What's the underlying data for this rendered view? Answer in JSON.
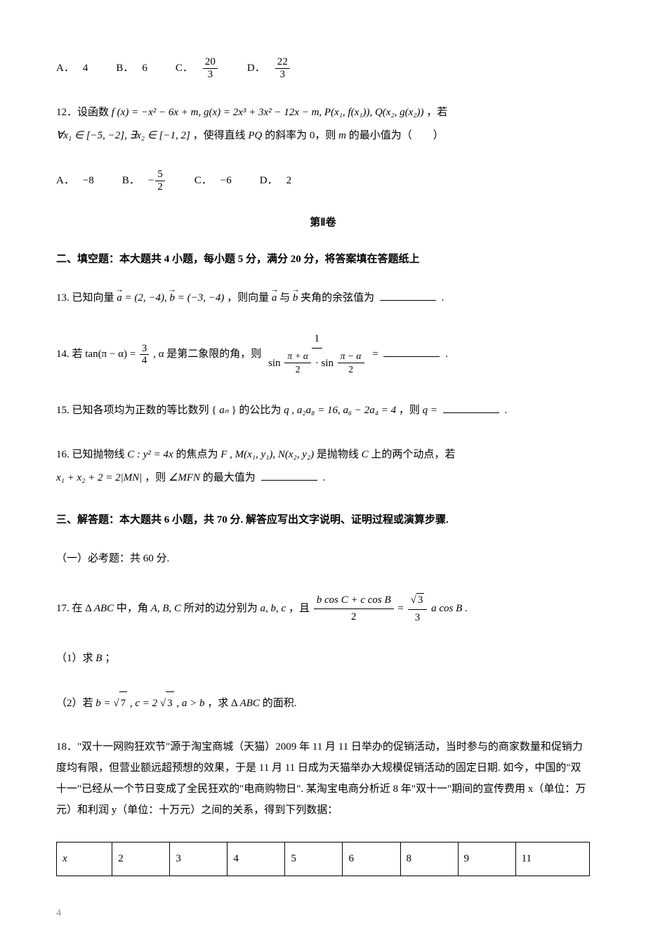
{
  "q11_options": {
    "a_label": "A．",
    "a_value": "4",
    "b_label": "B．",
    "b_value": "6",
    "c_label": "C．",
    "c_num": "20",
    "c_den": "3",
    "d_label": "D．",
    "d_num": "22",
    "d_den": "3"
  },
  "q12": {
    "prefix": "12．设函数 ",
    "expr1": "f (x) = −x² − 6x + m, g(x) = 2x³ + 3x² − 12x − m, P(x₁, f(x₁)), Q(x₂, g(x₂))",
    "suffix1": "，若",
    "line2_pre": "∀x₁ ∈ [−5, −2], ∃x₂ ∈ [−1, 2]",
    "line2_mid": "，使得直线 ",
    "pq": "PQ",
    "line2_post": " 的斜率为 0，则 ",
    "m": "m",
    "line2_end": " 的最小值为（　　）",
    "options": {
      "a_label": "A．",
      "a_value": "−8",
      "b_label": "B．",
      "b_num": "5",
      "b_den": "2",
      "b_neg": "−",
      "c_label": "C．",
      "c_value": "−6",
      "d_label": "D．",
      "d_value": "2"
    }
  },
  "section2_title": "第Ⅱ卷",
  "fill_heading": "二、填空题：本大题共 4 小题，每小题 5 分，满分 20 分，将答案填在答题纸上",
  "q13": {
    "prefix": "13. 已知向量 ",
    "a_vec": "a",
    "a_val": " = (2, −4), ",
    "b_vec": "b",
    "b_val": " = (−3, −4)",
    "mid": "，则向量 ",
    "and": " 与 ",
    "suffix": " 夹角的余弦值为",
    "period": "."
  },
  "q14": {
    "prefix": "14. 若 tan(π − α) = ",
    "frac_num": "3",
    "frac_den": "4",
    "mid": ", α 是第二象限的角，则 ",
    "big_num": "1",
    "big_den_l": "sin",
    "big_den_f1_num": "π + α",
    "big_den_f1_den": "2",
    "dot": "·",
    "big_den_r": "sin",
    "big_den_f2_num": "π − α",
    "big_den_f2_den": "2",
    "eq": " = ",
    "period": "."
  },
  "q15": {
    "prefix": "15. 已知各项均为正数的等比数列 {",
    "an": "aₙ",
    "mid1": "} 的公比为 ",
    "q": "q",
    "mid2": ", a₂a₈ = 16, a₆ − 2a₄ = 4",
    "mid3": "，则 ",
    "eq": "q = ",
    "period": "."
  },
  "q16": {
    "prefix": "16. 已知抛物线 ",
    "c_expr": "C : y² = 4x",
    "mid1": " 的焦点为 ",
    "f": "F",
    "mid2": ", M(x₁, y₁), N(x₂, y₂)",
    "mid3": " 是抛物线 ",
    "c": "C",
    "mid4": " 上的两个动点，若",
    "line2": "x₁ + x₂ + 2 = 2|MN|",
    "mid5": "，则 ",
    "angle": "∠MFN",
    "suffix": " 的最大值为",
    "period": "."
  },
  "solve_heading": "三、解答题：本大题共 6 小题，共 70 分. 解答应写出文字说明、证明过程或演算步骤.",
  "required_heading": "（一）必考题：共 60 分.",
  "q17": {
    "prefix": "17. 在 Δ",
    "abc": "ABC",
    "mid1": " 中，角 ",
    "ABC": "A, B, C",
    "mid2": " 所对的边分别为 ",
    "abc_lower": "a, b, c",
    "mid3": "，且 ",
    "lhs_num": "b cos C + c cos B",
    "lhs_den": "2",
    "eq": " = ",
    "rhs_num": "√3",
    "rhs_num_sqrt": "3",
    "rhs_den": "3",
    "rhs_suffix": "a cos B",
    "period": ".",
    "sub1": "（1）求 ",
    "b": "B",
    "sub1_end": "；",
    "sub2_pre": "（2）若 ",
    "sub2_b": "b = ",
    "sqrt7": "7",
    "sub2_c": ", c = 2",
    "sqrt3": "3",
    "sub2_cond": ", a > b",
    "sub2_mid": "，求 Δ",
    "sub2_abc": "ABC",
    "sub2_end": " 的面积."
  },
  "q18": {
    "text": "18．\"双十一网购狂欢节\"源于淘宝商城（天猫）2009 年 11 月 11 日举办的促销活动，当时参与的商家数量和促销力度均有限，但营业额远超预想的效果，于是 11 月 11 日成为天猫举办大规模促销活动的固定日期. 如今，中国的\"双十一\"已经从一个节日变成了全民狂欢的\"电商购物日\". 某淘宝电商分析近 8 年\"双十一\"期间的宣传费用 x（单位：万元）和利润 y（单位：十万元）之间的关系，得到下列数据：",
    "table": {
      "header": "x",
      "cells": [
        "2",
        "3",
        "4",
        "5",
        "6",
        "8",
        "9",
        "11"
      ]
    }
  },
  "page_number": "4"
}
